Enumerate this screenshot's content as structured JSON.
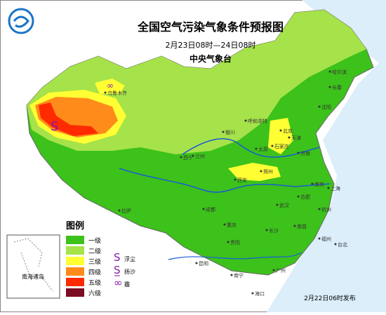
{
  "header": {
    "title": "全国空气污染气象条件预报图",
    "period": "2月23日08时—24日08时",
    "issuer": "中央气象台"
  },
  "legend": {
    "title": "图例",
    "levels": [
      {
        "label": "一级",
        "color": "#3cc21a"
      },
      {
        "label": "二级",
        "color": "#a6e24a"
      },
      {
        "label": "三级",
        "color": "#ffff33"
      },
      {
        "label": "四级",
        "color": "#ff8c1a"
      },
      {
        "label": "五级",
        "color": "#ff2a00"
      },
      {
        "label": "六级",
        "color": "#7d0b22"
      }
    ],
    "symbols": [
      {
        "symbol": "S",
        "label": "浮尘"
      },
      {
        "symbol": "S̲",
        "label": "扬沙"
      },
      {
        "symbol": "∞",
        "label": "霾"
      }
    ]
  },
  "inset": "南海诸岛",
  "footer": "2月22日06时发布",
  "cities": [
    "乌鲁木齐",
    "哈尔滨",
    "长春",
    "沈阳",
    "北京",
    "天津",
    "石家庄",
    "太原",
    "济南",
    "郑州",
    "西安",
    "银川",
    "兰州",
    "西宁",
    "拉萨",
    "成都",
    "重庆",
    "武汉",
    "合肥",
    "南京",
    "上海",
    "杭州",
    "南昌",
    "长沙",
    "贵阳",
    "昆明",
    "南宁",
    "广州",
    "福州",
    "台北",
    "海口",
    "呼和浩特"
  ]
}
